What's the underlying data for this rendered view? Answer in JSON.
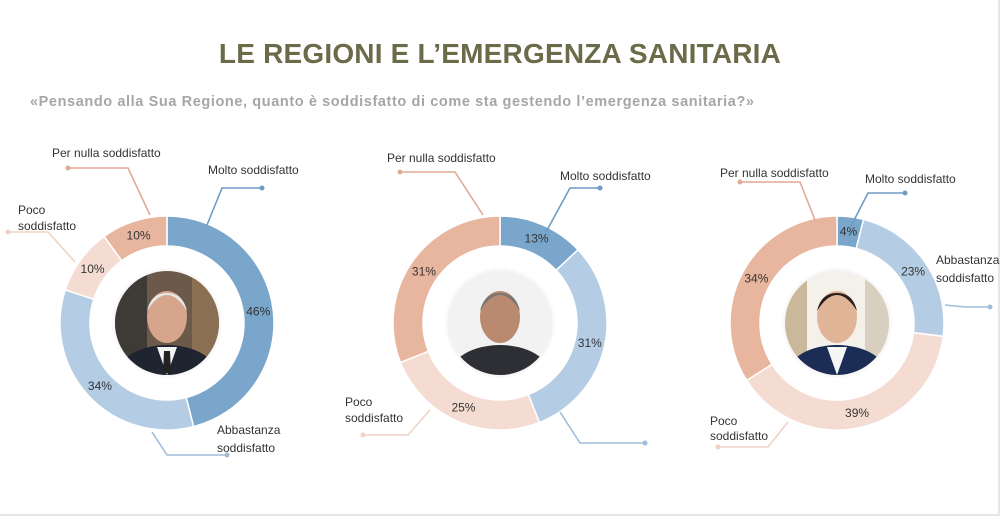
{
  "title": "LE REGIONI E L’EMERGENZA SANITARIA",
  "subtitle": "«Pensando alla Sua Regione, quanto è soddisfatto di come sta gestendo l’emergenza sanitaria?»",
  "colors": {
    "molto": "#7aa6cc",
    "abbastanza": "#b5cde4",
    "poco": "#f5dcd2",
    "per_nulla": "#e8b59f",
    "leader_molto": "#6f9cc4",
    "leader_abbastanza": "#9fbcd8",
    "leader_poco": "#f0d2c5",
    "leader_per_nulla": "#e2a993"
  },
  "chart_data": [
    {
      "type": "pie",
      "categories": [
        "Molto soddisfatto",
        "Abbastanza soddisfatto",
        "Poco soddisfatto",
        "Per nulla soddisfatto"
      ],
      "values": [
        46,
        34,
        10,
        10
      ],
      "labels": {
        "molto": "Molto soddisfatto",
        "abbastanza": [
          "Abbastanza",
          "soddisfatto"
        ],
        "poco": [
          "Poco",
          "soddisfatto"
        ],
        "per_nulla": "Per nulla soddisfatto"
      }
    },
    {
      "type": "pie",
      "categories": [
        "Molto soddisfatto",
        "Abbastanza soddisfatto",
        "Poco soddisfatto",
        "Per nulla soddisfatto"
      ],
      "values": [
        13,
        31,
        25,
        31
      ],
      "labels": {
        "molto": "Molto soddisfatto",
        "abbastanza": null,
        "poco": [
          "Poco",
          "soddisfatto"
        ],
        "per_nulla": "Per nulla soddisfatto"
      }
    },
    {
      "type": "pie",
      "categories": [
        "Molto soddisfatto",
        "Abbastanza soddisfatto",
        "Poco soddisfatto",
        "Per nulla soddisfatto"
      ],
      "values": [
        4,
        23,
        39,
        34
      ],
      "labels": {
        "molto": "Molto soddisfatto",
        "abbastanza": [
          "Abbastanza",
          "soddisfatto"
        ],
        "poco": [
          "Poco",
          "soddisfatto"
        ],
        "per_nulla": "Per nulla soddisfatto"
      }
    }
  ]
}
